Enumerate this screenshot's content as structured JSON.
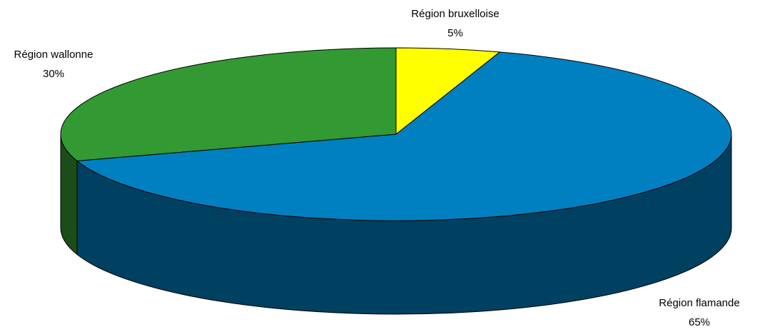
{
  "chart_data": {
    "type": "pie",
    "categories": [
      "Région bruxelloise",
      "Région flamande",
      "Région wallonne"
    ],
    "values": [
      5,
      65,
      30
    ],
    "value_labels": [
      "5%",
      "65%",
      "30%"
    ],
    "colors": [
      "#ffff00",
      "#0080c0",
      "#339933"
    ]
  }
}
